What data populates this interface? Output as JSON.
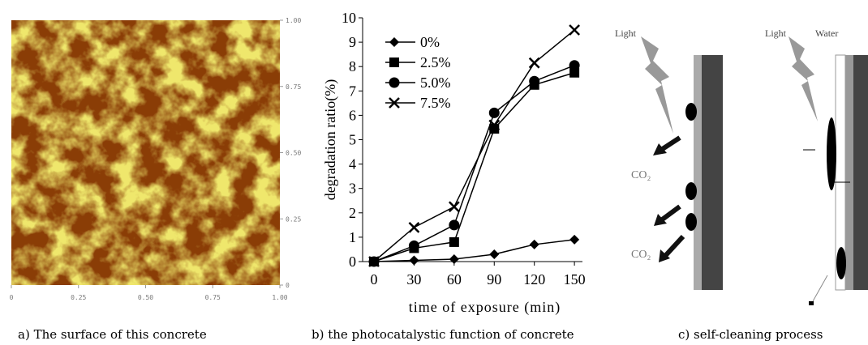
{
  "chart_data": {
    "type": "line",
    "x": [
      0,
      30,
      60,
      90,
      120,
      150
    ],
    "series": [
      {
        "name": "0%",
        "color": "#000000",
        "marker": "diamond",
        "values": [
          0,
          0.05,
          0.1,
          0.3,
          0.7,
          0.9
        ]
      },
      {
        "name": "2.5%",
        "color": "#000000",
        "marker": "square",
        "values": [
          0,
          0.55,
          0.8,
          5.45,
          7.25,
          7.75
        ]
      },
      {
        "name": "5.0%",
        "color": "#000000",
        "marker": "circle",
        "values": [
          0,
          0.65,
          1.5,
          6.1,
          7.4,
          8.05
        ]
      },
      {
        "name": "7.5%",
        "color": "#000000",
        "marker": "x",
        "values": [
          0,
          1.4,
          2.25,
          5.6,
          8.15,
          9.5
        ]
      }
    ],
    "xlabel": "time of exposure (min)",
    "ylabel": "degradation ratio(%)",
    "xlim": [
      -8.5,
      156
    ],
    "xticks": [
      0,
      30,
      60,
      90,
      120,
      150
    ],
    "ylim": [
      0,
      10
    ],
    "yticks": [
      0,
      1,
      2,
      3,
      4,
      5,
      6,
      7,
      8,
      9,
      10
    ],
    "legend": "upper left",
    "grid": false
  },
  "afm": {
    "xticks": [
      0,
      0.25,
      {
        "value": 0.5,
        "label": "0.50"
      },
      0.75,
      {
        "value": 1,
        "label": "1.00"
      }
    ],
    "yticks": [
      0,
      0.25,
      {
        "value": 0.5,
        "label": "0.50"
      },
      0.75,
      {
        "value": 1,
        "label": "1.00"
      }
    ]
  },
  "diagram": {
    "light_left": "Light",
    "co2_top": "CO₂",
    "co2_bottom": "CO₂",
    "light_right": "Light",
    "water": "Water"
  },
  "captions": [
    "a) The surface of this concrete",
    "b) the photocatalystic function of concrete",
    "c) self-cleaning process"
  ]
}
